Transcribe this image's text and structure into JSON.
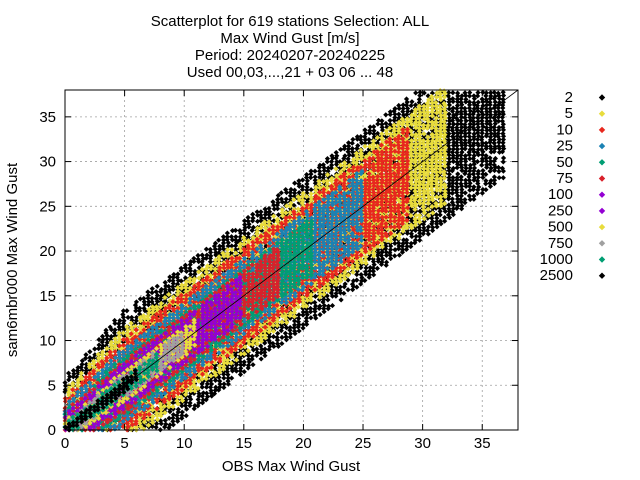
{
  "chart_data": {
    "type": "scatter",
    "title": [
      "Scatterplot for  619 stations Selection: ALL",
      "Max Wind Gust [m/s]",
      "Period: 20240207-20240225",
      "Used 00,03,...,21 + 03 06 ... 48"
    ],
    "xlabel": "OBS Max Wind Gust",
    "ylabel": "sam6mbr000 Max Wind Gust",
    "xlim": [
      0,
      38
    ],
    "ylim": [
      0,
      38
    ],
    "xticks": [
      0,
      5,
      10,
      15,
      20,
      25,
      30,
      35
    ],
    "yticks": [
      0,
      5,
      10,
      15,
      20,
      25,
      30,
      35
    ],
    "grid": true,
    "diagonal_line": true,
    "legend_position": "outside-right",
    "legend": [
      {
        "label": "2",
        "color": "#000000"
      },
      {
        "label": "5",
        "color": "#e8dc3c"
      },
      {
        "label": "10",
        "color": "#e8281e"
      },
      {
        "label": "25",
        "color": "#1b82b4"
      },
      {
        "label": "50",
        "color": "#009e73"
      },
      {
        "label": "75",
        "color": "#d9212b"
      },
      {
        "label": "100",
        "color": "#9400d3"
      },
      {
        "label": "250",
        "color": "#9400d3"
      },
      {
        "label": "500",
        "color": "#e8dc3c"
      },
      {
        "label": "750",
        "color": "#a0a0a0"
      },
      {
        "label": "1000",
        "color": "#009e73"
      },
      {
        "label": "2500",
        "color": "#000000"
      }
    ],
    "density_bands": [
      {
        "min_count": 2,
        "color": "#000000",
        "x_range": [
          0,
          37
        ],
        "width": 8.5
      },
      {
        "min_count": 5,
        "color": "#e8dc3c",
        "x_range": [
          0,
          32
        ],
        "width": 6.5
      },
      {
        "min_count": 10,
        "color": "#e8281e",
        "x_range": [
          0,
          29
        ],
        "width": 5.3
      },
      {
        "min_count": 25,
        "color": "#1b82b4",
        "x_range": [
          0,
          25
        ],
        "width": 4.3
      },
      {
        "min_count": 50,
        "color": "#009e73",
        "x_range": [
          0,
          21
        ],
        "width": 3.3
      },
      {
        "min_count": 75,
        "color": "#d9212b",
        "x_range": [
          0,
          18
        ],
        "width": 2.9
      },
      {
        "min_count": 100,
        "color": "#9400d3",
        "x_range": [
          0,
          15
        ],
        "width": 2.5
      },
      {
        "min_count": 500,
        "color": "#e8dc3c",
        "x_range": [
          0,
          11
        ],
        "width": 1.7
      },
      {
        "min_count": 750,
        "color": "#a0a0a0",
        "x_range": [
          0,
          10
        ],
        "width": 1.3
      },
      {
        "min_count": 1000,
        "color": "#009e73",
        "x_range": [
          0,
          8
        ],
        "width": 1.0
      },
      {
        "min_count": 2500,
        "color": "#000000",
        "x_range": [
          0,
          6
        ],
        "width": 0.7
      }
    ]
  }
}
